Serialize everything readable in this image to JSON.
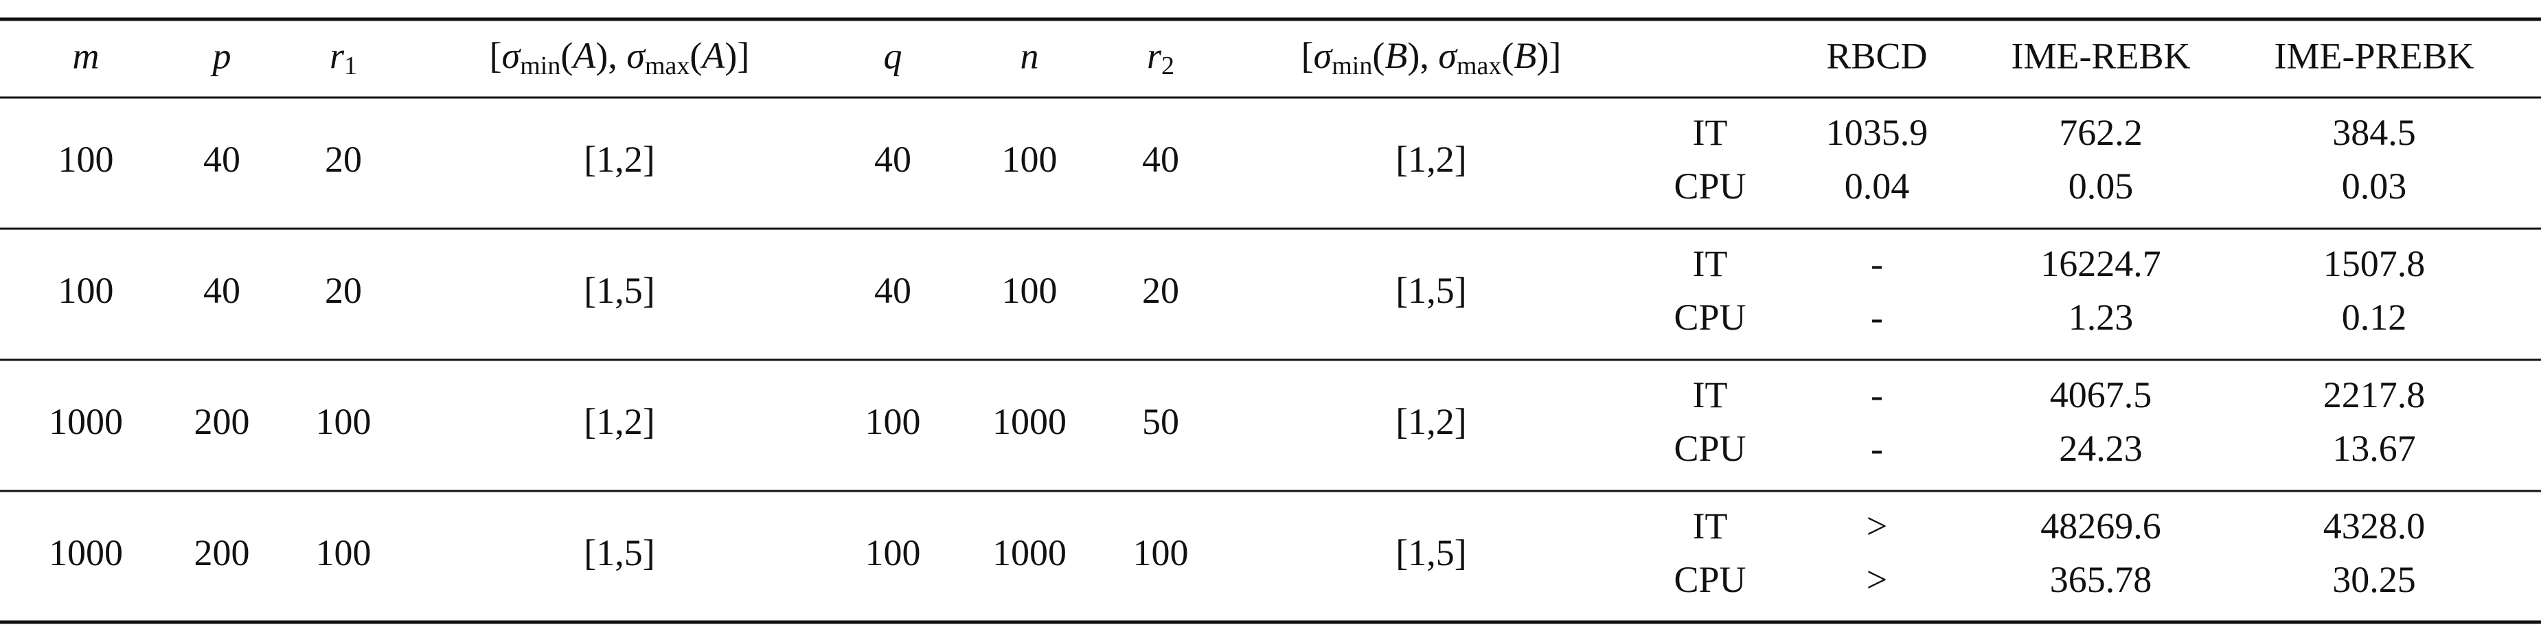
{
  "header": {
    "m": "m",
    "p": "p",
    "r1": {
      "base": "r",
      "sub": "1"
    },
    "sigma_a": [
      "[",
      "σ",
      "min",
      "(",
      "A",
      "), ",
      "σ",
      "max",
      "(",
      "A",
      ")]"
    ],
    "q": "q",
    "n": "n",
    "r2": {
      "base": "r",
      "sub": "2"
    },
    "sigma_b": [
      "[",
      "σ",
      "min",
      "(",
      "B",
      "), ",
      "σ",
      "max",
      "(",
      "B",
      ")]"
    ],
    "methods": [
      "RBCD",
      "IME-REBK",
      "IME-PREBK"
    ]
  },
  "rows": [
    {
      "params": [
        "100",
        "40",
        "20",
        "[1,2]",
        "40",
        "100",
        "40",
        "[1,2]"
      ],
      "metrics": [
        {
          "label": "IT",
          "values": [
            "1035.9",
            "762.2",
            "384.5"
          ]
        },
        {
          "label": "CPU",
          "values": [
            "0.04",
            "0.05",
            "0.03"
          ]
        }
      ]
    },
    {
      "params": [
        "100",
        "40",
        "20",
        "[1,5]",
        "40",
        "100",
        "20",
        "[1,5]"
      ],
      "metrics": [
        {
          "label": "IT",
          "values": [
            "-",
            "16224.7",
            "1507.8"
          ]
        },
        {
          "label": "CPU",
          "values": [
            "-",
            "1.23",
            "0.12"
          ]
        }
      ]
    },
    {
      "params": [
        "1000",
        "200",
        "100",
        "[1,2]",
        "100",
        "1000",
        "50",
        "[1,2]"
      ],
      "metrics": [
        {
          "label": "IT",
          "values": [
            "-",
            "4067.5",
            "2217.8"
          ]
        },
        {
          "label": "CPU",
          "values": [
            "-",
            "24.23",
            "13.67"
          ]
        }
      ]
    },
    {
      "params": [
        "1000",
        "200",
        "100",
        "[1,5]",
        "100",
        "1000",
        "100",
        "[1,5]"
      ],
      "metrics": [
        {
          "label": "IT",
          "values": [
            ">",
            "48269.6",
            "4328.0"
          ]
        },
        {
          "label": "CPU",
          "values": [
            ">",
            "365.78",
            "30.25"
          ]
        }
      ]
    }
  ]
}
